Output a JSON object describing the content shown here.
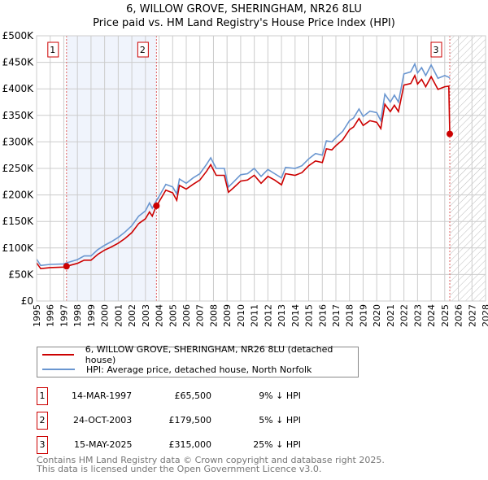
{
  "chart_data": {
    "type": "line",
    "title": "6, WILLOW GROVE, SHERINGHAM, NR26 8LU",
    "subtitle": "Price paid vs. HM Land Registry's House Price Index (HPI)",
    "xlim": [
      1995,
      2028
    ],
    "ylim": [
      0,
      500000
    ],
    "yticks": [
      {
        "v": 0,
        "label": "£0"
      },
      {
        "v": 50000,
        "label": "£50K"
      },
      {
        "v": 100000,
        "label": "£100K"
      },
      {
        "v": 150000,
        "label": "£150K"
      },
      {
        "v": 200000,
        "label": "£200K"
      },
      {
        "v": 250000,
        "label": "£250K"
      },
      {
        "v": 300000,
        "label": "£300K"
      },
      {
        "v": 350000,
        "label": "£350K"
      },
      {
        "v": 400000,
        "label": "£400K"
      },
      {
        "v": 450000,
        "label": "£450K"
      },
      {
        "v": 500000,
        "label": "£500K"
      }
    ],
    "xticks": [
      "1995",
      "1996",
      "1997",
      "1998",
      "1999",
      "2000",
      "2001",
      "2002",
      "2003",
      "2004",
      "2005",
      "2006",
      "2007",
      "2008",
      "2009",
      "2010",
      "2011",
      "2012",
      "2013",
      "2014",
      "2015",
      "2016",
      "2017",
      "2018",
      "2019",
      "2020",
      "2021",
      "2022",
      "2023",
      "2024",
      "2025",
      "2026",
      "2027",
      "2028"
    ],
    "grid": true,
    "x": [
      1995.0,
      1995.3,
      1996,
      1997,
      1997.2,
      1998,
      1998.5,
      1999,
      1999.5,
      2000,
      2000.5,
      2001,
      2001.5,
      2002,
      2002.5,
      2003,
      2003.3,
      2003.5,
      2003.8,
      2004,
      2004.5,
      2005,
      2005.3,
      2005.5,
      2006,
      2006.5,
      2007,
      2007.5,
      2007.8,
      2008.2,
      2008.8,
      2009.1,
      2009.5,
      2010,
      2010.5,
      2011,
      2011.5,
      2012,
      2012.5,
      2013,
      2013.3,
      2014,
      2014.5,
      2015,
      2015.5,
      2016,
      2016.3,
      2016.7,
      2017,
      2017.5,
      2018,
      2018.3,
      2018.7,
      2019,
      2019.5,
      2020,
      2020.3,
      2020.6,
      2021,
      2021.3,
      2021.6,
      2022,
      2022.5,
      2022.8,
      2023,
      2023.3,
      2023.6,
      2024,
      2024.5,
      2025,
      2025.3,
      2025.37
    ],
    "series": [
      {
        "name": "6, WILLOW GROVE, SHERINGHAM, NR26 8LU (detached house)",
        "color": "#cc0000",
        "values": [
          72,
          61,
          63,
          64,
          65.5,
          71,
          77,
          77,
          88,
          96,
          102,
          109,
          118,
          129,
          146,
          155,
          168,
          160,
          179.5,
          187,
          209,
          204,
          190,
          218,
          211,
          220,
          228,
          245,
          257,
          237,
          237,
          205,
          214,
          226,
          228,
          237,
          222,
          235,
          228,
          219,
          240,
          237,
          242,
          255,
          264,
          261,
          287,
          285,
          293,
          304,
          323,
          328,
          344,
          331,
          340,
          337,
          325,
          371,
          357,
          369,
          357,
          407,
          410,
          425,
          409,
          418,
          404,
          423,
          399,
          404,
          405,
          315
        ]
      },
      {
        "name": "HPI: Average price, detached house, North Norfolk",
        "color": "#6a96d0",
        "values": [
          79,
          67,
          69,
          70,
          72,
          78,
          85,
          85,
          97,
          105,
          112,
          120,
          130,
          142,
          160,
          170,
          185,
          175,
          189,
          197,
          220,
          215,
          202,
          230,
          222,
          232,
          240,
          258,
          270,
          250,
          250,
          215,
          225,
          238,
          240,
          250,
          235,
          248,
          240,
          232,
          252,
          250,
          255,
          268,
          278,
          275,
          302,
          300,
          308,
          320,
          340,
          345,
          362,
          348,
          358,
          355,
          340,
          390,
          375,
          388,
          375,
          428,
          432,
          447,
          430,
          440,
          425,
          445,
          420,
          425,
          422,
          420
        ]
      }
    ],
    "value_unit": "thousand GBP",
    "sales": [
      {
        "id": "1",
        "x": 1997.2,
        "price": 65500,
        "date": "14-MAR-1997",
        "price_label": "£65,500",
        "hpi_diff": "9% ↓ HPI"
      },
      {
        "id": "2",
        "x": 2003.81,
        "price": 179500,
        "date": "24-OCT-2003",
        "price_label": "£179,500",
        "hpi_diff": "5% ↓ HPI"
      },
      {
        "id": "3",
        "x": 2025.37,
        "price": 315000,
        "date": "15-MAY-2025",
        "price_label": "£315,000",
        "hpi_diff": "25% ↓ HPI"
      }
    ],
    "legend_placement": "below"
  },
  "footer": {
    "line1": "Contains HM Land Registry data © Crown copyright and database right 2025.",
    "line2": "This data is licensed under the Open Government Licence v3.0."
  }
}
